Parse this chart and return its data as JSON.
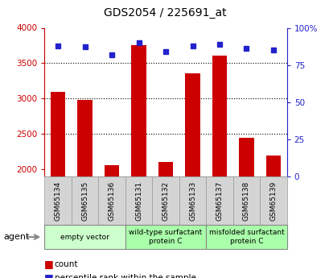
{
  "title": "GDS2054 / 225691_at",
  "samples": [
    "GSM65134",
    "GSM65135",
    "GSM65136",
    "GSM65131",
    "GSM65132",
    "GSM65133",
    "GSM65137",
    "GSM65138",
    "GSM65139"
  ],
  "counts": [
    3100,
    2980,
    2060,
    3760,
    2110,
    3360,
    3610,
    2450,
    2200
  ],
  "percentiles": [
    88,
    87,
    82,
    90,
    84,
    88,
    89,
    86,
    85
  ],
  "groups": [
    {
      "label": "empty vector",
      "start": 0,
      "end": 3,
      "color": "#ccffcc"
    },
    {
      "label": "wild-type surfactant\nprotein C",
      "start": 3,
      "end": 6,
      "color": "#aaffaa"
    },
    {
      "label": "misfolded surfactant\nprotein C",
      "start": 6,
      "end": 9,
      "color": "#aaffaa"
    }
  ],
  "ylim_left": [
    1900,
    4000
  ],
  "ylim_right": [
    0,
    100
  ],
  "yticks_left": [
    2000,
    2500,
    3000,
    3500,
    4000
  ],
  "yticks_right": [
    0,
    25,
    50,
    75,
    100
  ],
  "ytick_labels_right": [
    "0",
    "25",
    "50",
    "75",
    "100%"
  ],
  "bar_color": "#cc0000",
  "dot_color": "#2222cc",
  "bar_width": 0.55,
  "background_color": "#ffffff",
  "plot_bg_color": "#ffffff"
}
